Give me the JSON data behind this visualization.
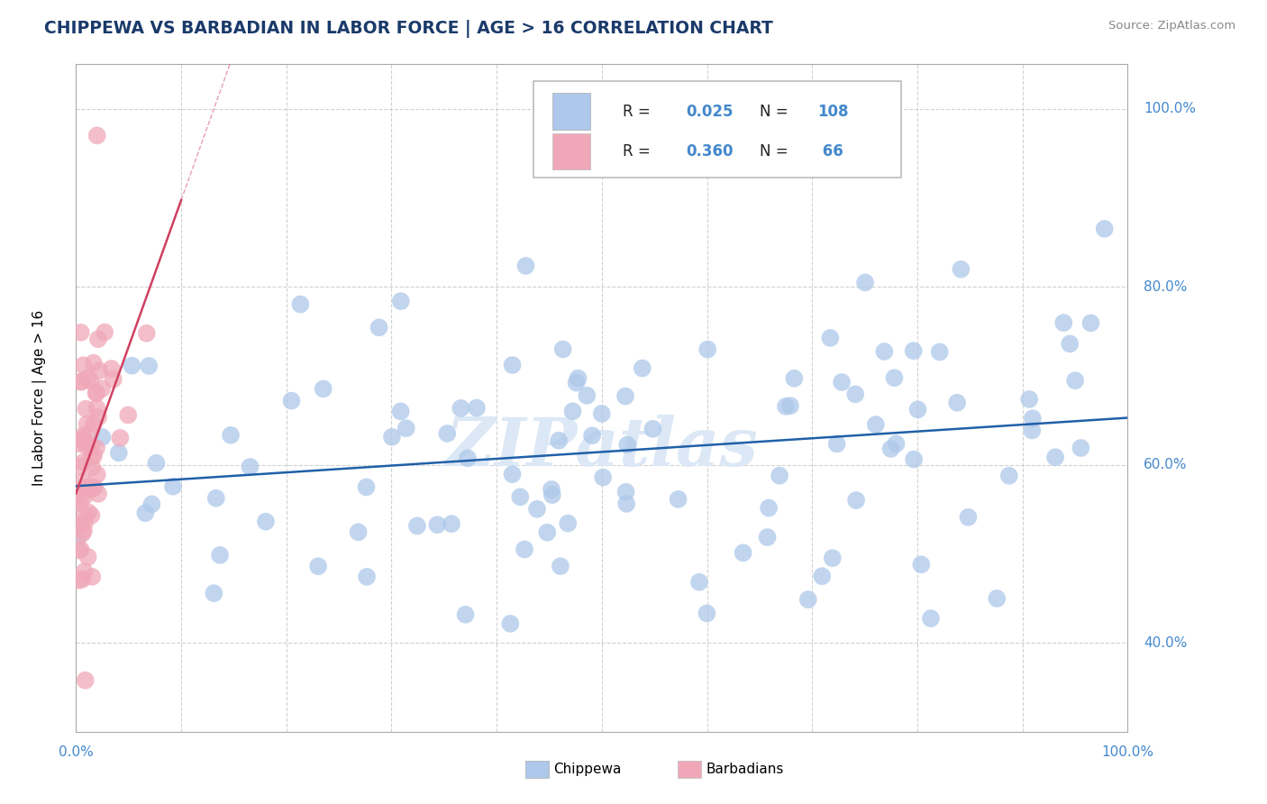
{
  "title": "CHIPPEWA VS BARBADIAN IN LABOR FORCE | AGE > 16 CORRELATION CHART",
  "source_text": "Source: ZipAtlas.com",
  "ylabel": "In Labor Force | Age > 16",
  "blue_color": "#adc8ea",
  "pink_color": "#f0a8b8",
  "blue_line_color": "#2060a8",
  "pink_line_color": "#d04060",
  "title_color": "#1a3a6a",
  "watermark_color": "#dce8f5",
  "background_color": "#ffffff",
  "grid_color": "#cccccc",
  "label_color": "#4488cc",
  "R_chip": 0.025,
  "N_chip": 108,
  "R_barb": 0.36,
  "N_barb": 66
}
